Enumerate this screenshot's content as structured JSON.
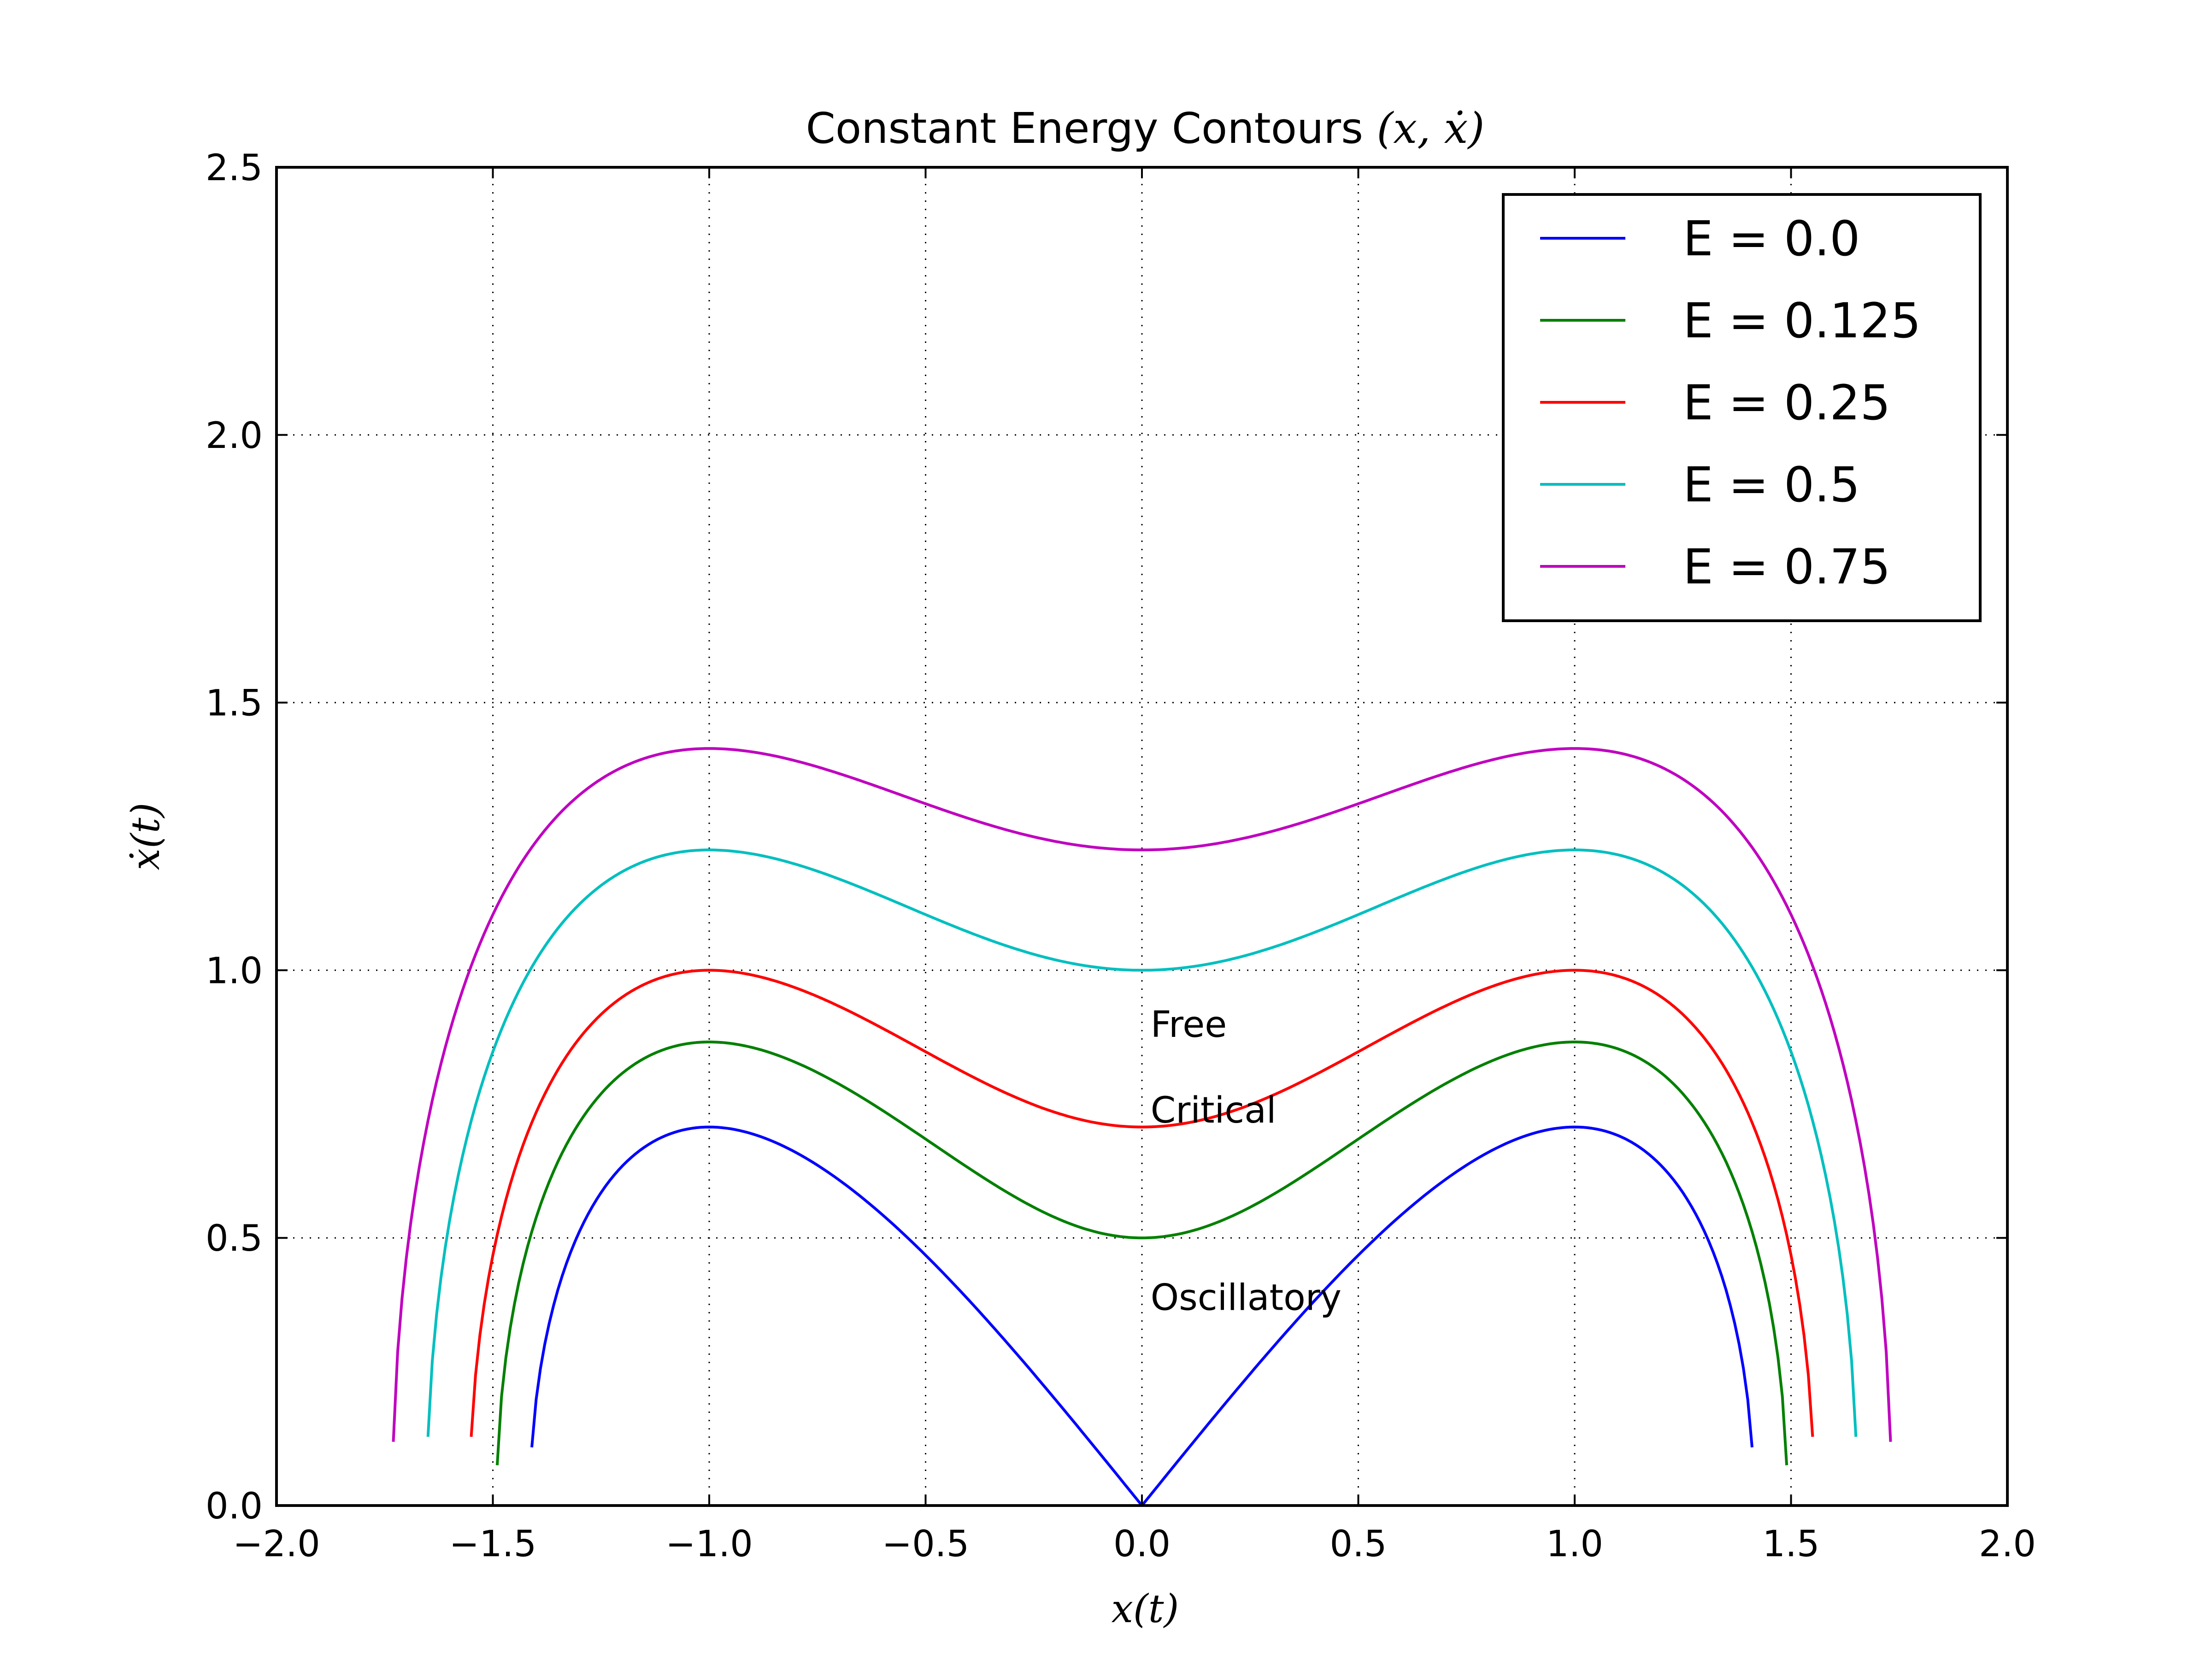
{
  "chart_data": {
    "type": "line",
    "title": "Constant Energy Contours ",
    "title_math": "(x, ẋ)",
    "xlabel": "x(t)",
    "ylabel": "ẋ(t)",
    "xlim": [
      -2.0,
      2.0
    ],
    "ylim": [
      0.0,
      2.5
    ],
    "x_ticks": [
      "−2.0",
      "−1.5",
      "−1.0",
      "−0.5",
      "0.0",
      "0.5",
      "1.0",
      "1.5",
      "2.0"
    ],
    "y_ticks": [
      "0.0",
      "0.5",
      "1.0",
      "1.5",
      "2.0",
      "2.5"
    ],
    "grid": true,
    "legend_position": "top-right",
    "series": [
      {
        "name": "E = 0.0",
        "energy": 0.0,
        "color": "#0000ff"
      },
      {
        "name": "E = 0.125",
        "energy": 0.125,
        "color": "#008000"
      },
      {
        "name": "E = 0.25",
        "energy": 0.25,
        "color": "#ff0000"
      },
      {
        "name": "E = 0.5",
        "energy": 0.5,
        "color": "#00bfbf"
      },
      {
        "name": "E = 0.75",
        "energy": 0.75,
        "color": "#bf00bf"
      }
    ],
    "annotations": [
      {
        "text": "Free",
        "x": 0.02,
        "y": 0.86
      },
      {
        "text": "Critical",
        "x": 0.02,
        "y": 0.7
      },
      {
        "text": "Oscillatory",
        "x": 0.02,
        "y": 0.35
      }
    ]
  }
}
